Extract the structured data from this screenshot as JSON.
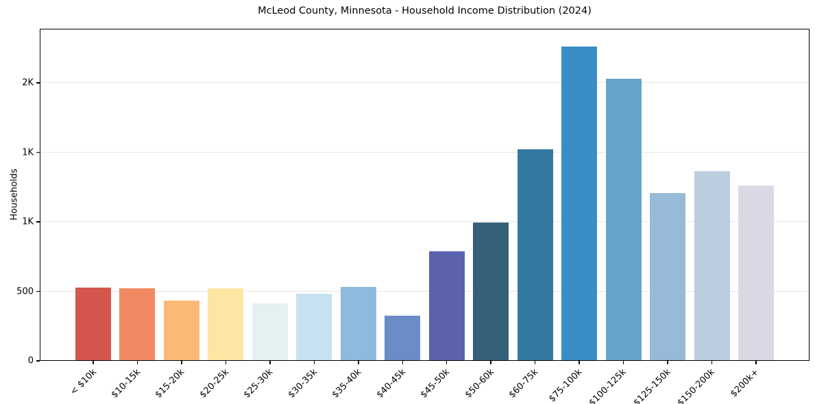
{
  "chart_data": {
    "type": "bar",
    "title": "McLeod County, Minnesota - Household Income Distribution (2024)",
    "ylabel": "Households",
    "categories": [
      "< $10k",
      "$10-15k",
      "$15-20k",
      "$20-25k",
      "$25-30k",
      "$30-35k",
      "$35-40k",
      "$40-45k",
      "$45-50k",
      "$50-60k",
      "$60-75k",
      "$75-100k",
      "$100-125k",
      "$125-150k",
      "$150-200k",
      "$200k+"
    ],
    "values": [
      529,
      522,
      433,
      520,
      414,
      483,
      531,
      325,
      790,
      997,
      1524,
      2261,
      2028,
      1207,
      1365,
      1263
    ],
    "bar_colors": [
      "#d4574e",
      "#f18a62",
      "#fbb977",
      "#fde6a4",
      "#e4f1f2",
      "#c6e2f0",
      "#8ebade",
      "#6b8dc6",
      "#5c62ae",
      "#36607a",
      "#3379a0",
      "#3a8ec5",
      "#66a4cc",
      "#96bad8",
      "#bccddf",
      "#d9d9e6"
    ],
    "yticks": [
      {
        "value": 0,
        "label": "0"
      },
      {
        "value": 500,
        "label": "500"
      },
      {
        "value": 1000,
        "label": "1K"
      },
      {
        "value": 1500,
        "label": "1K"
      },
      {
        "value": 2000,
        "label": "2K"
      }
    ],
    "ylim": [
      0,
      2390
    ],
    "grid": true,
    "legend_position": "none",
    "colors": {
      "background": "#ffffff",
      "gridline": "#e6e6e6",
      "axis": "#000000",
      "text": "#000000"
    }
  }
}
